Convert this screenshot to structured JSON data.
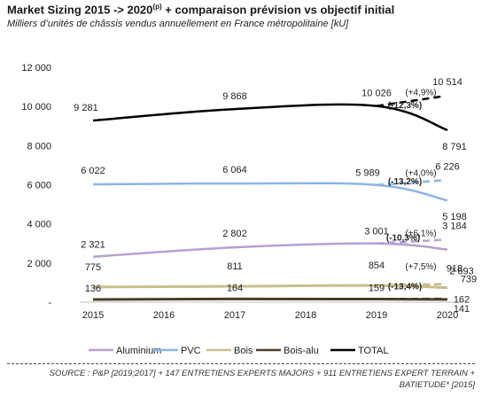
{
  "header": {
    "title_main": "Market Sizing 2015 -> 2020",
    "title_sup": "(p)",
    "title_rest": " + comparaison prévision vs objectif initial",
    "subtitle": "Milliers d’unités de châssis vendus annuellement en France métropolitaine [kU]"
  },
  "footer": {
    "source": "SOURCE : P&P [2019;2017] + 147 ENTRETIENS EXPERTS MAJORS + 911 ENTRETIENS EXPERT TERRAIN + BATIETUDE* [2015]"
  },
  "chart_data": {
    "type": "line",
    "x": [
      "2015",
      "2016",
      "2017",
      "2018",
      "2019",
      "2020"
    ],
    "ylim": [
      0,
      12000
    ],
    "yticks": [
      "-",
      "2 000",
      "4 000",
      "6 000",
      "8 000",
      "10 000",
      "12 000"
    ],
    "grid": false,
    "legend_position": "bottom",
    "series": [
      {
        "name": "Aluminium",
        "color": "#b4a0d2",
        "points": [
          [
            2015,
            2321
          ],
          [
            2017,
            2802
          ],
          [
            2019,
            3001
          ],
          [
            2020,
            2693
          ]
        ],
        "target_2020": 3184,
        "labels": [
          "2 321",
          "2 802",
          "3 001",
          "2 693"
        ],
        "target_label": "3 184",
        "growth_target": "(+6,1%)",
        "growth_actual": "(-10,3%)"
      },
      {
        "name": "PVC",
        "color": "#8eb4e3",
        "points": [
          [
            2015,
            6022
          ],
          [
            2017,
            6064
          ],
          [
            2019,
            5989
          ],
          [
            2020,
            5198
          ]
        ],
        "target_2020": 6226,
        "labels": [
          "6 022",
          "6 064",
          "5 989",
          "5 198"
        ],
        "target_label": "6 226",
        "growth_target": "(+4,0%)",
        "growth_actual": "(-13,2%)"
      },
      {
        "name": "Bois",
        "color": "#c8bf8c",
        "points": [
          [
            2015,
            775
          ],
          [
            2017,
            811
          ],
          [
            2019,
            854
          ],
          [
            2020,
            739
          ]
        ],
        "target_2020": 918,
        "labels": [
          "775",
          "811",
          "854",
          "739"
        ],
        "target_label": "918",
        "growth_target": "(+7,5%)",
        "growth_actual": "(-13,4%)"
      },
      {
        "name": "Bois-alu",
        "color": "#4a3f2a",
        "points": [
          [
            2015,
            136
          ],
          [
            2017,
            164
          ],
          [
            2019,
            159
          ],
          [
            2020,
            141
          ]
        ],
        "target_2020": 162,
        "labels": [
          "136",
          "164",
          "159",
          "141"
        ],
        "target_label": "162"
      },
      {
        "name": "TOTAL",
        "color": "#000000",
        "points": [
          [
            2015,
            9281
          ],
          [
            2017,
            9868
          ],
          [
            2019,
            10026
          ],
          [
            2020,
            8791
          ]
        ],
        "target_2020": 10514,
        "labels": [
          "9 281",
          "9 868",
          "10 026",
          "8 791"
        ],
        "target_label": "10 514",
        "growth_target": "(+4,9%)",
        "growth_actual": "(-12,3%)"
      }
    ]
  }
}
